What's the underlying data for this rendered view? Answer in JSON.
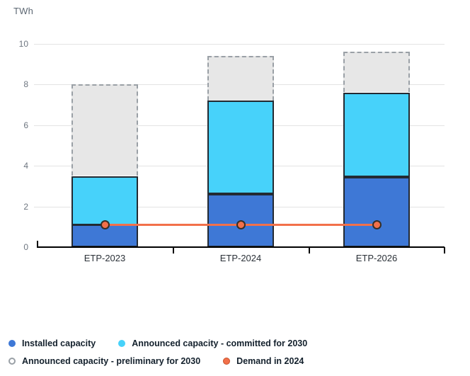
{
  "header": {
    "unit_label": "TWh"
  },
  "chart_data": {
    "type": "bar",
    "stacked": true,
    "title": "",
    "categories": [
      "ETP-2023",
      "ETP-2024",
      "ETP-2026"
    ],
    "series": [
      {
        "name": "Installed capacity",
        "color": "#3e78d6",
        "border_style": "solid",
        "values": [
          1.1,
          2.6,
          3.45
        ]
      },
      {
        "name": "Announced capacity - committed for 2030",
        "color": "#47d2fa",
        "border_style": "solid",
        "values": [
          2.4,
          4.6,
          4.15
        ]
      },
      {
        "name": "Announced capacity - preliminary for 2030",
        "color": "#e7e7e7",
        "border_style": "dashed",
        "values": [
          4.5,
          2.2,
          2.0
        ]
      }
    ],
    "stack_totals": {
      "installed": [
        1.1,
        2.6,
        3.45
      ],
      "committed_cumulative": [
        3.5,
        7.2,
        7.6
      ],
      "preliminary_cumulative": [
        8.0,
        9.4,
        9.6
      ]
    },
    "line_series": {
      "name": "Demand in 2024",
      "color": "#f2704a",
      "values": [
        1.1,
        1.1,
        1.1
      ]
    },
    "xlabel": "",
    "ylabel": "TWh",
    "ylim": [
      0,
      10
    ],
    "yticks": [
      0,
      2,
      4,
      6,
      8,
      10
    ],
    "grid": true,
    "legend_position": "bottom-left"
  },
  "legend": {
    "items": [
      {
        "label": "Installed capacity",
        "swatch": "filled-blue"
      },
      {
        "label": "Announced capacity - committed for 2030",
        "swatch": "filled-cyan"
      },
      {
        "label": "Announced capacity - preliminary for 2030",
        "swatch": "outlined-gray"
      },
      {
        "label": "Demand in 2024",
        "swatch": "filled-orange"
      }
    ]
  },
  "colors": {
    "installed": "#3e78d6",
    "committed": "#47d2fa",
    "preliminary_fill": "#e7e7e7",
    "preliminary_border": "#9aa0a6",
    "demand": "#f2704a",
    "bar_border": "#232a32",
    "gridline": "#e3e3e3",
    "axis": "#000000",
    "tick_label_color": "#6e7680",
    "category_label_color": "#2b3138",
    "legend_text_color": "#13202c"
  }
}
